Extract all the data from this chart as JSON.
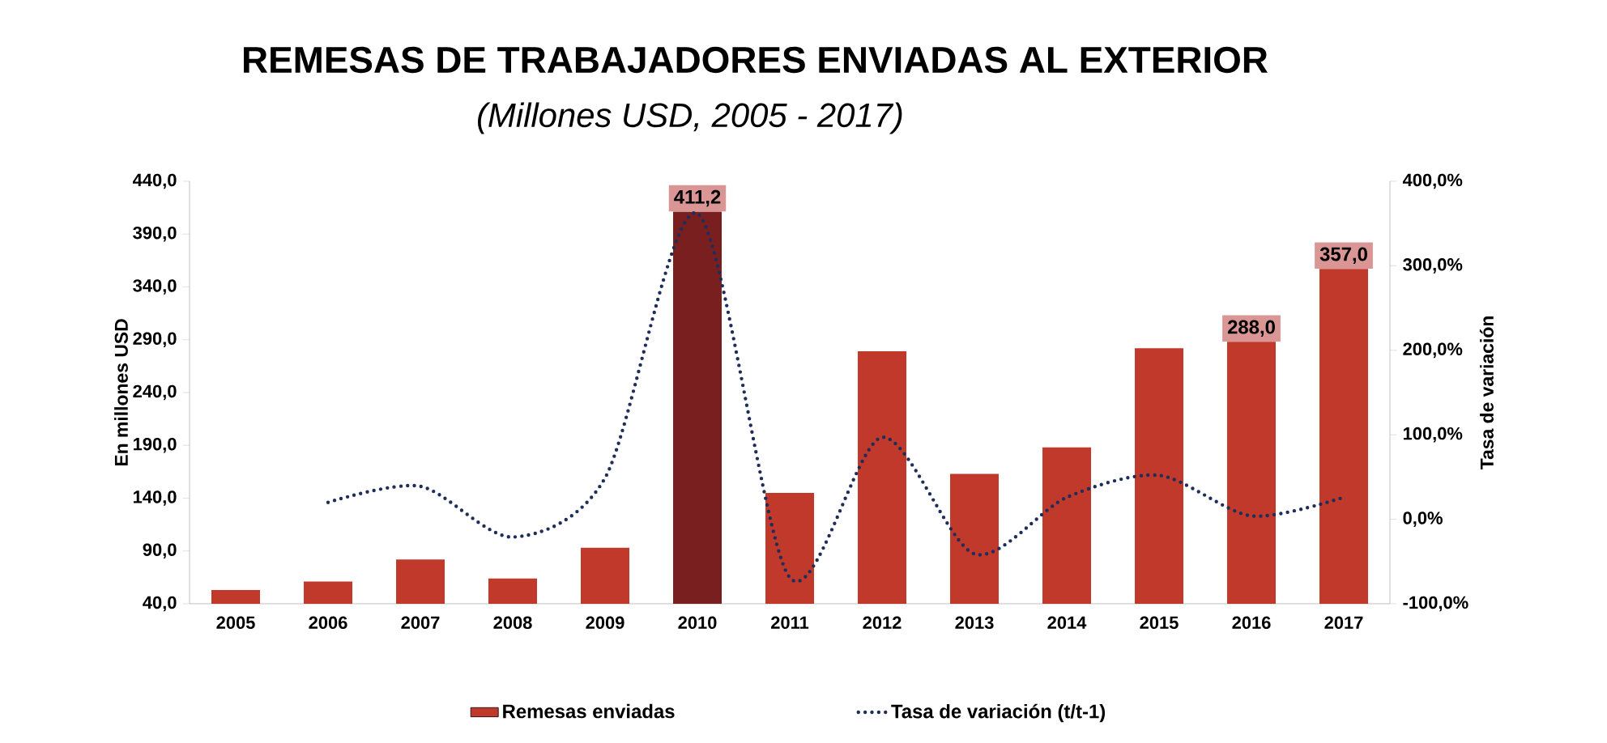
{
  "chart_data": {
    "type": "bar",
    "title": "REMESAS DE TRABAJADORES  ENVIADAS AL EXTERIOR",
    "subtitle": "(Millones USD, 2005 - 2017)",
    "ylabel": "En millones USD",
    "y2label": "Tasa de variación",
    "categories": [
      "2005",
      "2006",
      "2007",
      "2008",
      "2009",
      "2010",
      "2011",
      "2012",
      "2013",
      "2014",
      "2015",
      "2016",
      "2017"
    ],
    "ylim": [
      40,
      440
    ],
    "yticks": [
      {
        "value": 40,
        "label": "40,0"
      },
      {
        "value": 90,
        "label": "90,0"
      },
      {
        "value": 140,
        "label": "140,0"
      },
      {
        "value": 190,
        "label": "190,0"
      },
      {
        "value": 240,
        "label": "240,0"
      },
      {
        "value": 290,
        "label": "290,0"
      },
      {
        "value": 340,
        "label": "340,0"
      },
      {
        "value": 390,
        "label": "390,0"
      },
      {
        "value": 440,
        "label": "440,0"
      }
    ],
    "y2lim": [
      -100,
      400
    ],
    "y2ticks": [
      {
        "value": -100,
        "label": "-100,0%"
      },
      {
        "value": 0,
        "label": "0,0%"
      },
      {
        "value": 100,
        "label": "100,0%"
      },
      {
        "value": 200,
        "label": "200,0%"
      },
      {
        "value": 300,
        "label": "300,0%"
      },
      {
        "value": 400,
        "label": "400,0%"
      }
    ],
    "grid": false,
    "legend": "bottom",
    "marker": "none",
    "series": [
      {
        "name": "Remesas enviadas",
        "color": "#c0392b",
        "colors": [
          "#c0392b",
          "#c0392b",
          "#c0392b",
          "#c0392b",
          "#c0392b",
          "#7a1f1f",
          "#c0392b",
          "#c0392b",
          "#c0392b",
          "#c0392b",
          "#c0392b",
          "#c0392b",
          "#c0392b"
        ],
        "values": [
          53,
          61,
          82,
          64,
          93,
          411.2,
          145,
          279,
          163,
          188,
          282,
          288.0,
          357.0
        ],
        "value_labels": [
          null,
          null,
          null,
          null,
          null,
          "411,2",
          null,
          null,
          null,
          null,
          null,
          "288,0",
          "357,0"
        ]
      },
      {
        "name": "Tasa de variación (t/t-1)",
        "type": "line",
        "axis": "y2",
        "color": "#1f2d5a",
        "line_style": "dotted",
        "values": [
          null,
          20,
          39,
          -21,
          49,
          362,
          -69,
          97,
          -41,
          26,
          52,
          4,
          26
        ]
      }
    ]
  }
}
